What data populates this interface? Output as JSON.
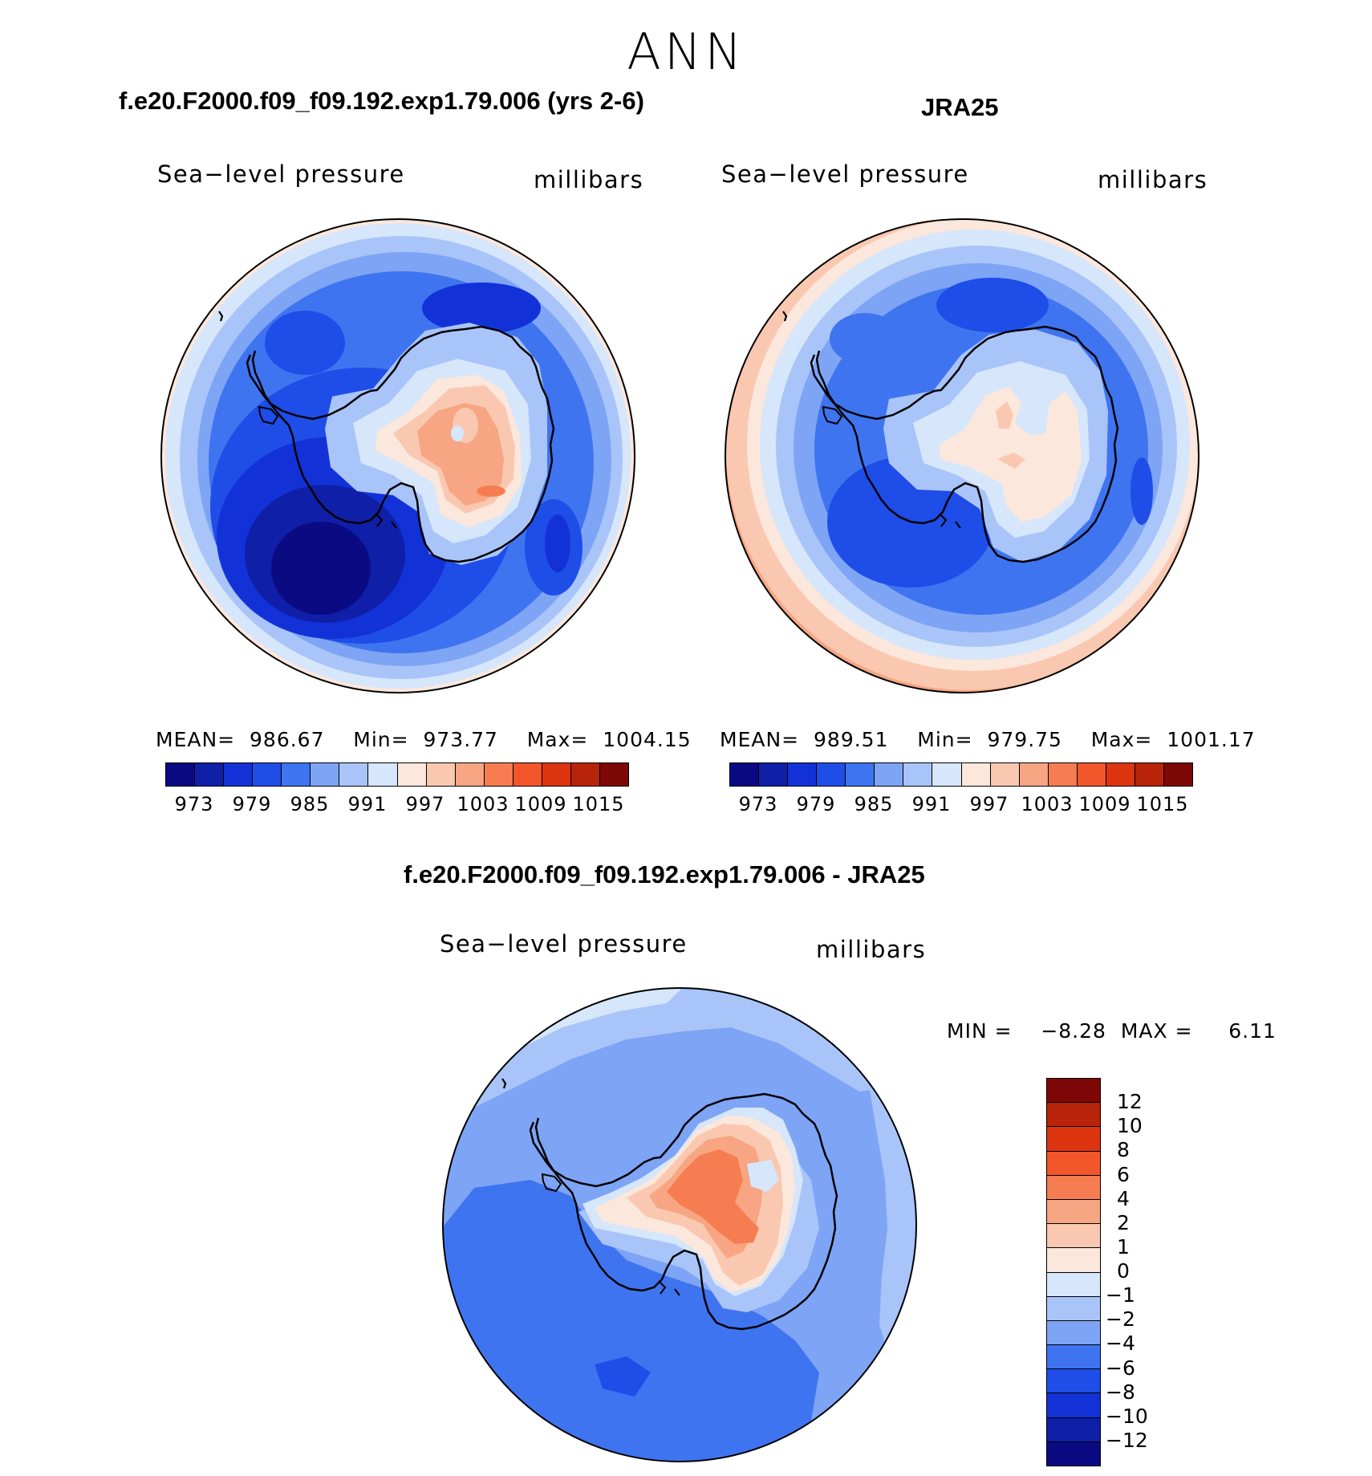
{
  "season": "ANN",
  "panels": [
    {
      "title": "f.e20.F2000.f09_f09.192.exp1.79.006 (yrs 2-6)",
      "variable": "Sea−level pressure",
      "units": "millibars",
      "stats": "MEAN=  986.67    Min=  973.77    Max=  1004.15",
      "colorbar_labels": [
        "973",
        "979",
        "985",
        "991",
        "997",
        "1003",
        "1009",
        "1015"
      ]
    },
    {
      "title": "JRA25",
      "variable": "Sea−level pressure",
      "units": "millibars",
      "stats": "MEAN=  989.51    Min=  979.75    Max=  1001.17",
      "colorbar_labels": [
        "973",
        "979",
        "985",
        "991",
        "997",
        "1003",
        "1009",
        "1015"
      ]
    }
  ],
  "difference": {
    "title": "f.e20.F2000.f09_f09.192.exp1.79.006 - JRA25",
    "variable": "Sea−level pressure",
    "units": "millibars",
    "stats": "MIN =    −8.28  MAX =     6.11",
    "colorbar_labels": [
      "12",
      "10",
      "8",
      "6",
      "4",
      "2",
      "1",
      "0",
      "−1",
      "−2",
      "−4",
      "−6",
      "−8",
      "−10",
      "−12"
    ]
  },
  "colors": {
    "abs_scale": [
      "#0a0a82",
      "#0f1fa8",
      "#1232d8",
      "#1f4de8",
      "#3f74f0",
      "#7ea4f5",
      "#a9c4f8",
      "#d6e6fb",
      "#fbe7dc",
      "#fac8b0",
      "#f7a582",
      "#f67d52",
      "#f2562b",
      "#dc3510",
      "#b8240a",
      "#7e0707"
    ],
    "diff_scale": [
      "#7e0707",
      "#b8240a",
      "#dc3510",
      "#f2562b",
      "#f67d52",
      "#f7a582",
      "#fac8b0",
      "#fbe7dc",
      "#d6e6fb",
      "#a9c4f8",
      "#7ea4f5",
      "#3f74f0",
      "#1f4de8",
      "#1232d8",
      "#0f1fa8",
      "#0a0a82"
    ],
    "coastline": "#000000"
  }
}
